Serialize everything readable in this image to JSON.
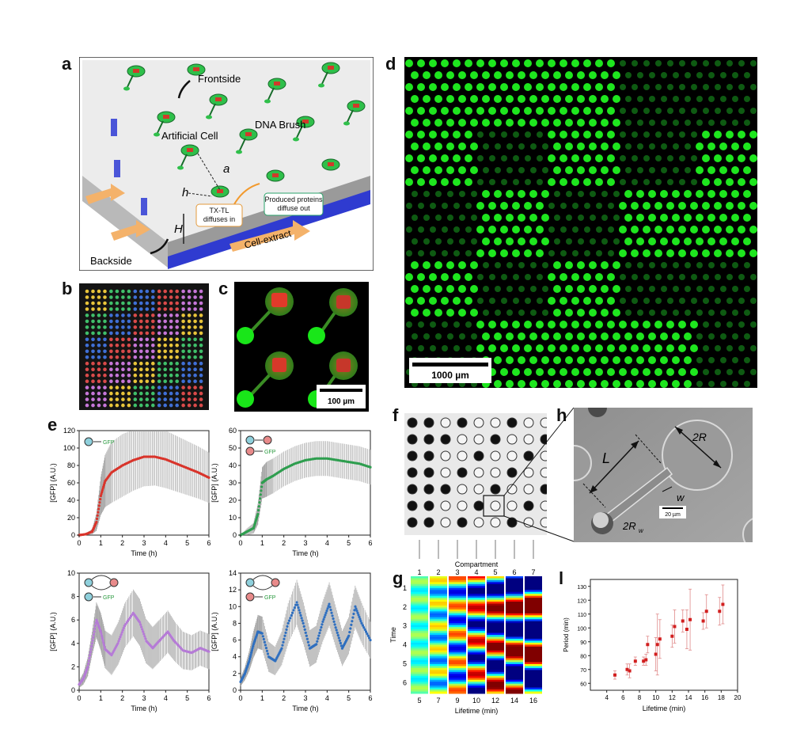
{
  "panels": {
    "a": {
      "label": "a",
      "frontside": "Frontside",
      "dna_brush": "DNA Brush",
      "artificial_cell": "Artificial Cell",
      "a_sym": "a",
      "h_sym": "h",
      "H_sym": "H",
      "txtl": "TX-TL diffuses in",
      "produced": "Produced proteins diffuse out",
      "cell_extract": "Cell-extract",
      "backside": "Backside"
    },
    "b": {
      "label": "b"
    },
    "c": {
      "label": "c",
      "scalebar": "100 µm"
    },
    "d": {
      "label": "d",
      "scalebar": "1000 µm"
    },
    "e": {
      "label": "e"
    },
    "f": {
      "label": "f"
    },
    "g": {
      "label": "g"
    },
    "h": {
      "label": "h",
      "L": "L",
      "twoR": "2R",
      "w": "w",
      "twoRw": "2R",
      "twoRw_sub": "w",
      "scalebar": "20 µm"
    },
    "l": {
      "label": "l"
    }
  },
  "colors": {
    "red_series": "#d9342b",
    "green_series": "#2e9e4f",
    "purple_series": "#b57bd6",
    "blue_series": "#2f6fbf",
    "errorbar": "#9a9a9a",
    "fluor_green": "#19e619"
  },
  "chart_data": [
    {
      "type": "line",
      "panel": "e1",
      "xlabel": "Time (h)",
      "ylabel": "[GFP] (A.U.)",
      "xlim": [
        0,
        6
      ],
      "ylim": [
        0,
        120
      ],
      "xticks": [
        0,
        1,
        2,
        3,
        4,
        5,
        6
      ],
      "yticks": [
        0,
        20,
        40,
        60,
        80,
        100,
        120
      ],
      "inset_label": "GFP",
      "x": [
        0,
        0.3,
        0.6,
        0.8,
        1.0,
        1.2,
        1.5,
        2.0,
        2.5,
        3.0,
        3.5,
        4.0,
        4.5,
        5.0,
        5.5,
        6.0
      ],
      "mean": [
        0,
        1,
        4,
        15,
        45,
        62,
        72,
        80,
        86,
        90,
        90,
        87,
        82,
        77,
        72,
        66
      ],
      "err": [
        0,
        1,
        3,
        10,
        22,
        30,
        35,
        36,
        35,
        34,
        33,
        33,
        32,
        31,
        30,
        29
      ]
    },
    {
      "type": "line",
      "panel": "e2",
      "xlabel": "Time (h)",
      "ylabel": "[GFP] (A.U.)",
      "xlim": [
        0,
        6
      ],
      "ylim": [
        0,
        60
      ],
      "xticks": [
        0,
        1,
        2,
        3,
        4,
        5,
        6
      ],
      "yticks": [
        0,
        10,
        20,
        30,
        40,
        50,
        60
      ],
      "inset_label": "GFP",
      "x": [
        0,
        0.3,
        0.6,
        0.8,
        1.0,
        1.2,
        1.5,
        2.0,
        2.5,
        3.0,
        3.5,
        4.0,
        4.5,
        5.0,
        5.5,
        6.0
      ],
      "mean": [
        0,
        2,
        4,
        12,
        30,
        32,
        34,
        38,
        41,
        43,
        44,
        44,
        43,
        42,
        41,
        39
      ],
      "err": [
        0,
        2,
        3,
        6,
        9,
        10,
        10,
        10,
        10,
        10,
        10,
        10,
        10,
        10,
        10,
        10
      ]
    },
    {
      "type": "line",
      "panel": "e3",
      "xlabel": "Time (h)",
      "ylabel": "[GFP] (A.U.)",
      "xlim": [
        0,
        6
      ],
      "ylim": [
        0,
        10
      ],
      "xticks": [
        0,
        1,
        2,
        3,
        4,
        5,
        6
      ],
      "yticks": [
        0,
        2,
        4,
        6,
        8,
        10
      ],
      "inset_label": "GFP",
      "x": [
        0,
        0.2,
        0.4,
        0.6,
        0.8,
        1.0,
        1.2,
        1.5,
        1.8,
        2.1,
        2.5,
        2.8,
        3.1,
        3.4,
        3.7,
        4.1,
        4.4,
        4.8,
        5.2,
        5.6,
        6.0
      ],
      "mean": [
        0.5,
        1,
        2,
        4,
        6,
        5,
        3.5,
        3,
        4,
        5.5,
        6.6,
        5.8,
        4.2,
        3.6,
        4.2,
        5.0,
        4.2,
        3.4,
        3.2,
        3.6,
        3.3
      ],
      "err": [
        0.3,
        0.5,
        0.8,
        1,
        1.5,
        1.6,
        1.6,
        1.7,
        1.8,
        1.9,
        2,
        2,
        1.9,
        1.8,
        1.8,
        1.8,
        1.7,
        1.6,
        1.5,
        1.5,
        1.5
      ]
    },
    {
      "type": "line",
      "panel": "e4",
      "xlabel": "Time (h)",
      "ylabel": "[GFP] (A.U.)",
      "xlim": [
        0,
        6
      ],
      "ylim": [
        0,
        14
      ],
      "xticks": [
        0,
        1,
        2,
        3,
        4,
        5,
        6
      ],
      "yticks": [
        0,
        2,
        4,
        6,
        8,
        10,
        12,
        14
      ],
      "inset_label": "GFP",
      "x": [
        0,
        0.2,
        0.4,
        0.6,
        0.8,
        1.0,
        1.3,
        1.6,
        1.9,
        2.2,
        2.6,
        2.9,
        3.2,
        3.5,
        3.8,
        4.1,
        4.4,
        4.7,
        5.0,
        5.3,
        5.6,
        6.0
      ],
      "mean": [
        1,
        2,
        3.5,
        5.5,
        7,
        6.8,
        4,
        3.5,
        5,
        8,
        10.5,
        8,
        5,
        5.5,
        8.2,
        10.3,
        7.5,
        5,
        6.5,
        10,
        8,
        6
      ],
      "err": [
        0.5,
        0.8,
        1.2,
        1.6,
        2,
        2,
        1.8,
        1.7,
        2,
        2.4,
        2.7,
        2.5,
        2.2,
        2.2,
        2.4,
        2.6,
        2.4,
        2.1,
        2.2,
        2.5,
        2.4,
        2.2
      ]
    },
    {
      "type": "heatmap",
      "panel": "g",
      "title": "Compartment",
      "xlabel": "Lifetime (min)",
      "ylabel": "Time",
      "compartments": [
        "1",
        "2",
        "3",
        "4",
        "5",
        "6",
        "7"
      ],
      "lifetimes": [
        "5",
        "7",
        "9",
        "10",
        "12",
        "14",
        "16"
      ],
      "time_ticks": [
        "1",
        "2",
        "3",
        "4",
        "5",
        "6"
      ]
    },
    {
      "type": "scatter",
      "panel": "l",
      "xlabel": "Lifetime (min)",
      "ylabel": "Period (min)",
      "xlim": [
        2,
        20
      ],
      "ylim": [
        55,
        135
      ],
      "xticks": [
        4,
        6,
        8,
        10,
        12,
        14,
        16,
        18,
        20
      ],
      "yticks": [
        60,
        70,
        80,
        90,
        100,
        110,
        120,
        130
      ],
      "points": [
        {
          "x": 5,
          "y": 66,
          "err": 3
        },
        {
          "x": 6.5,
          "y": 70,
          "err": 4
        },
        {
          "x": 6.8,
          "y": 69,
          "err": 5
        },
        {
          "x": 7.5,
          "y": 76,
          "err": 3
        },
        {
          "x": 8.5,
          "y": 76,
          "err": 3
        },
        {
          "x": 8.8,
          "y": 77,
          "err": 4
        },
        {
          "x": 9,
          "y": 88,
          "err": 6
        },
        {
          "x": 10,
          "y": 81,
          "err": 12
        },
        {
          "x": 10.2,
          "y": 88,
          "err": 22
        },
        {
          "x": 10.5,
          "y": 92,
          "err": 14
        },
        {
          "x": 12,
          "y": 94,
          "err": 8
        },
        {
          "x": 12.3,
          "y": 101,
          "err": 12
        },
        {
          "x": 13.3,
          "y": 105,
          "err": 8
        },
        {
          "x": 13.8,
          "y": 99,
          "err": 14
        },
        {
          "x": 14.2,
          "y": 106,
          "err": 22
        },
        {
          "x": 15.8,
          "y": 105,
          "err": 6
        },
        {
          "x": 16.2,
          "y": 112,
          "err": 12
        },
        {
          "x": 17.8,
          "y": 112,
          "err": 10
        },
        {
          "x": 18.2,
          "y": 117,
          "err": 14
        }
      ]
    }
  ]
}
